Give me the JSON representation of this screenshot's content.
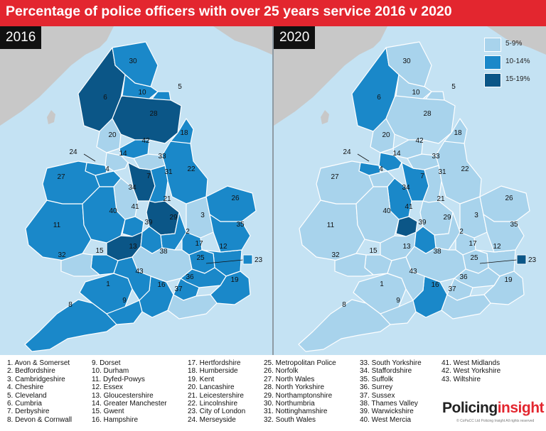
{
  "title": "Percentage of police officers with over 25 years service 2016 v 2020",
  "panels": [
    {
      "year": "2016"
    },
    {
      "year": "2020"
    }
  ],
  "legend": [
    {
      "label": "5-9%",
      "color": "#a8d3ec"
    },
    {
      "label": "10-14%",
      "color": "#1a88c9"
    },
    {
      "label": "15-19%",
      "color": "#0b5687"
    }
  ],
  "colors": {
    "sea": "#c4e2f3",
    "foreign_land": "#c8c8c8",
    "header": "#e3262f",
    "border": "#ffffff"
  },
  "forces": [
    {
      "n": "1",
      "name": "Avon & Somerset",
      "b2016": "10-14%",
      "b2020": "5-9%"
    },
    {
      "n": "2",
      "name": "Bedfordshire",
      "b2016": "10-14%",
      "b2020": "5-9%"
    },
    {
      "n": "3",
      "name": "Cambridgeshire",
      "b2016": "5-9%",
      "b2020": "5-9%"
    },
    {
      "n": "4",
      "name": "Cheshire",
      "b2016": "10-14%",
      "b2020": "5-9%"
    },
    {
      "n": "5",
      "name": "Cleveland",
      "b2016": "10-14%",
      "b2020": "5-9%"
    },
    {
      "n": "6",
      "name": "Cumbria",
      "b2016": "15-19%",
      "b2020": "10-14%"
    },
    {
      "n": "7",
      "name": "Derbyshire",
      "b2016": "15-19%",
      "b2020": "10-14%"
    },
    {
      "n": "8",
      "name": "Devon & Cornwall",
      "b2016": "10-14%",
      "b2020": "5-9%"
    },
    {
      "n": "9",
      "name": "Dorset",
      "b2016": "10-14%",
      "b2020": "5-9%"
    },
    {
      "n": "10",
      "name": "Durham",
      "b2016": "10-14%",
      "b2020": "5-9%"
    },
    {
      "n": "11",
      "name": "Dyfed-Powys",
      "b2016": "10-14%",
      "b2020": "5-9%"
    },
    {
      "n": "12",
      "name": "Essex",
      "b2016": "10-14%",
      "b2020": "5-9%"
    },
    {
      "n": "13",
      "name": "Gloucestershire",
      "b2016": "15-19%",
      "b2020": "5-9%"
    },
    {
      "n": "14",
      "name": "Greater Manchester",
      "b2016": "5-9%",
      "b2020": "10-14%"
    },
    {
      "n": "15",
      "name": "Gwent",
      "b2016": "10-14%",
      "b2020": "5-9%"
    },
    {
      "n": "16",
      "name": "Hampshire",
      "b2016": "10-14%",
      "b2020": "10-14%"
    },
    {
      "n": "17",
      "name": "Hertfordshire",
      "b2016": "10-14%",
      "b2020": "5-9%"
    },
    {
      "n": "18",
      "name": "Humberside",
      "b2016": "10-14%",
      "b2020": "5-9%"
    },
    {
      "n": "19",
      "name": "Kent",
      "b2016": "10-14%",
      "b2020": "5-9%"
    },
    {
      "n": "20",
      "name": "Lancashire",
      "b2016": "5-9%",
      "b2020": "5-9%"
    },
    {
      "n": "21",
      "name": "Leicestershire",
      "b2016": "15-19%",
      "b2020": "5-9%"
    },
    {
      "n": "22",
      "name": "Lincolnshire",
      "b2016": "10-14%",
      "b2020": "5-9%"
    },
    {
      "n": "23",
      "name": "City of London",
      "b2016": "10-14%",
      "b2020": "15-19%"
    },
    {
      "n": "24",
      "name": "Merseyside",
      "b2016": "10-14%",
      "b2020": "10-14%"
    },
    {
      "n": "25",
      "name": "Metropolitan Police",
      "b2016": "10-14%",
      "b2020": "5-9%"
    },
    {
      "n": "26",
      "name": "Norfolk",
      "b2016": "10-14%",
      "b2020": "5-9%"
    },
    {
      "n": "27",
      "name": "North Wales",
      "b2016": "10-14%",
      "b2020": "5-9%"
    },
    {
      "n": "28",
      "name": "North Yorkshire",
      "b2016": "15-19%",
      "b2020": "5-9%"
    },
    {
      "n": "29",
      "name": "Northamptonshire",
      "b2016": "10-14%",
      "b2020": "5-9%"
    },
    {
      "n": "30",
      "name": "Northumbria",
      "b2016": "10-14%",
      "b2020": "5-9%"
    },
    {
      "n": "31",
      "name": "Nottinghamshire",
      "b2016": "10-14%",
      "b2020": "5-9%"
    },
    {
      "n": "32",
      "name": "South Wales",
      "b2016": "5-9%",
      "b2020": "5-9%"
    },
    {
      "n": "33",
      "name": "South Yorkshire",
      "b2016": "",
      "b2020": ""
    },
    {
      "n": "34",
      "name": "Staffordshire",
      "b2016": "5-9%",
      "b2020": "10-14%"
    },
    {
      "n": "35",
      "name": "Suffolk",
      "b2016": "10-14%",
      "b2020": "5-9%"
    },
    {
      "n": "36",
      "name": "Surrey",
      "b2016": "10-14%",
      "b2020": "5-9%"
    },
    {
      "n": "37",
      "name": "Sussex",
      "b2016": "5-9%",
      "b2020": "5-9%"
    },
    {
      "n": "38",
      "name": "Thames Valley",
      "b2016": "5-9%",
      "b2020": "5-9%"
    },
    {
      "n": "39",
      "name": "Warwickshire",
      "b2016": "10-14%",
      "b2020": "10-14%"
    },
    {
      "n": "40",
      "name": "West Mercia",
      "b2016": "10-14%",
      "b2020": "5-9%"
    },
    {
      "n": "41",
      "name": "West Midlands",
      "b2016": "10-14%",
      "b2020": "15-19%"
    },
    {
      "n": "42",
      "name": "West Yorkshire",
      "b2016": "10-14%",
      "b2020": "5-9%"
    },
    {
      "n": "43",
      "name": "Wiltshire",
      "b2016": "10-14%",
      "b2020": "5-9%"
    }
  ],
  "key_columns": [
    [
      "1. Avon & Somerset",
      "2. Bedfordshire",
      "3. Cambridgeshire",
      "4. Cheshire",
      "5. Cleveland",
      "6. Cumbria",
      "7. Derbyshire",
      "8. Devon & Cornwall"
    ],
    [
      "9. Dorset",
      "10. Durham",
      "11. Dyfed-Powys",
      "12. Essex",
      "13. Gloucestershire",
      "14. Greater Manchester",
      "15. Gwent",
      "16. Hampshire"
    ],
    [
      "17. Hertfordshire",
      "18. Humberside",
      "19. Kent",
      "20. Lancashire",
      "21. Leicestershire",
      "22. Lincolnshire",
      "23. City of London",
      "24. Merseyside"
    ],
    [
      "25. Metropolitan Police",
      "26. Norfolk",
      "27. North Wales",
      "28. North Yorkshire",
      "29. Northamptonshire",
      "30. Northumbria",
      "31. Nottinghamshire",
      "32. South Wales"
    ],
    [
      "33. South Yorkshire",
      "34. Staffordshire",
      "35. Suffolk",
      "36. Surrey",
      "37. Sussex",
      "38. Thames Valley",
      "39. Warwickshire",
      "40. West Mercia"
    ],
    [
      "41. West Midlands",
      "42. West Yorkshire",
      "43. Wiltshire"
    ]
  ],
  "brand": {
    "part1": "Policing",
    "part2": "insight",
    "copyright": "© CoPaCC Ltd Policing Insight All rights reserved"
  }
}
